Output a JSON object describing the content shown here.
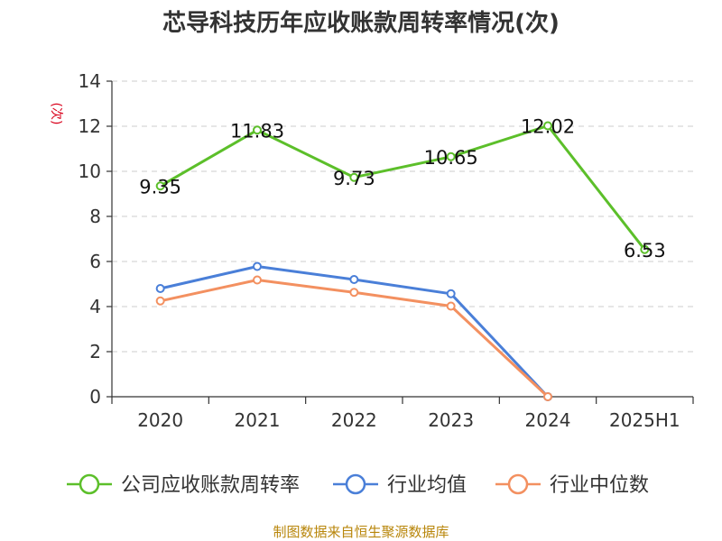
{
  "chart_data": {
    "type": "line",
    "title": "芯导科技历年应收账款周转率情况(次)",
    "ylabel": "(次)",
    "xlabel": "",
    "categories": [
      "2020",
      "2021",
      "2022",
      "2023",
      "2024",
      "2025H1"
    ],
    "yticks": [
      0,
      2,
      4,
      6,
      8,
      10,
      12,
      14
    ],
    "ylim": [
      0,
      14
    ],
    "grid": "horizontal dashed",
    "legend_position": "bottom",
    "series": [
      {
        "name": "公司应收账款周转率",
        "color": "#5cbf2a",
        "values": [
          9.35,
          11.83,
          9.73,
          10.65,
          12.02,
          6.53
        ],
        "labels": [
          "9.35",
          "11.83",
          "9.73",
          "10.65",
          "12.02",
          "6.53"
        ]
      },
      {
        "name": "行业均值",
        "color": "#4a7fd8",
        "values": [
          4.8,
          5.78,
          5.2,
          4.57,
          0,
          null
        ]
      },
      {
        "name": "行业中位数",
        "color": "#f39060",
        "values": [
          4.25,
          5.18,
          4.63,
          4.02,
          0,
          null
        ]
      }
    ],
    "source": "制图数据来自恒生聚源数据库"
  }
}
